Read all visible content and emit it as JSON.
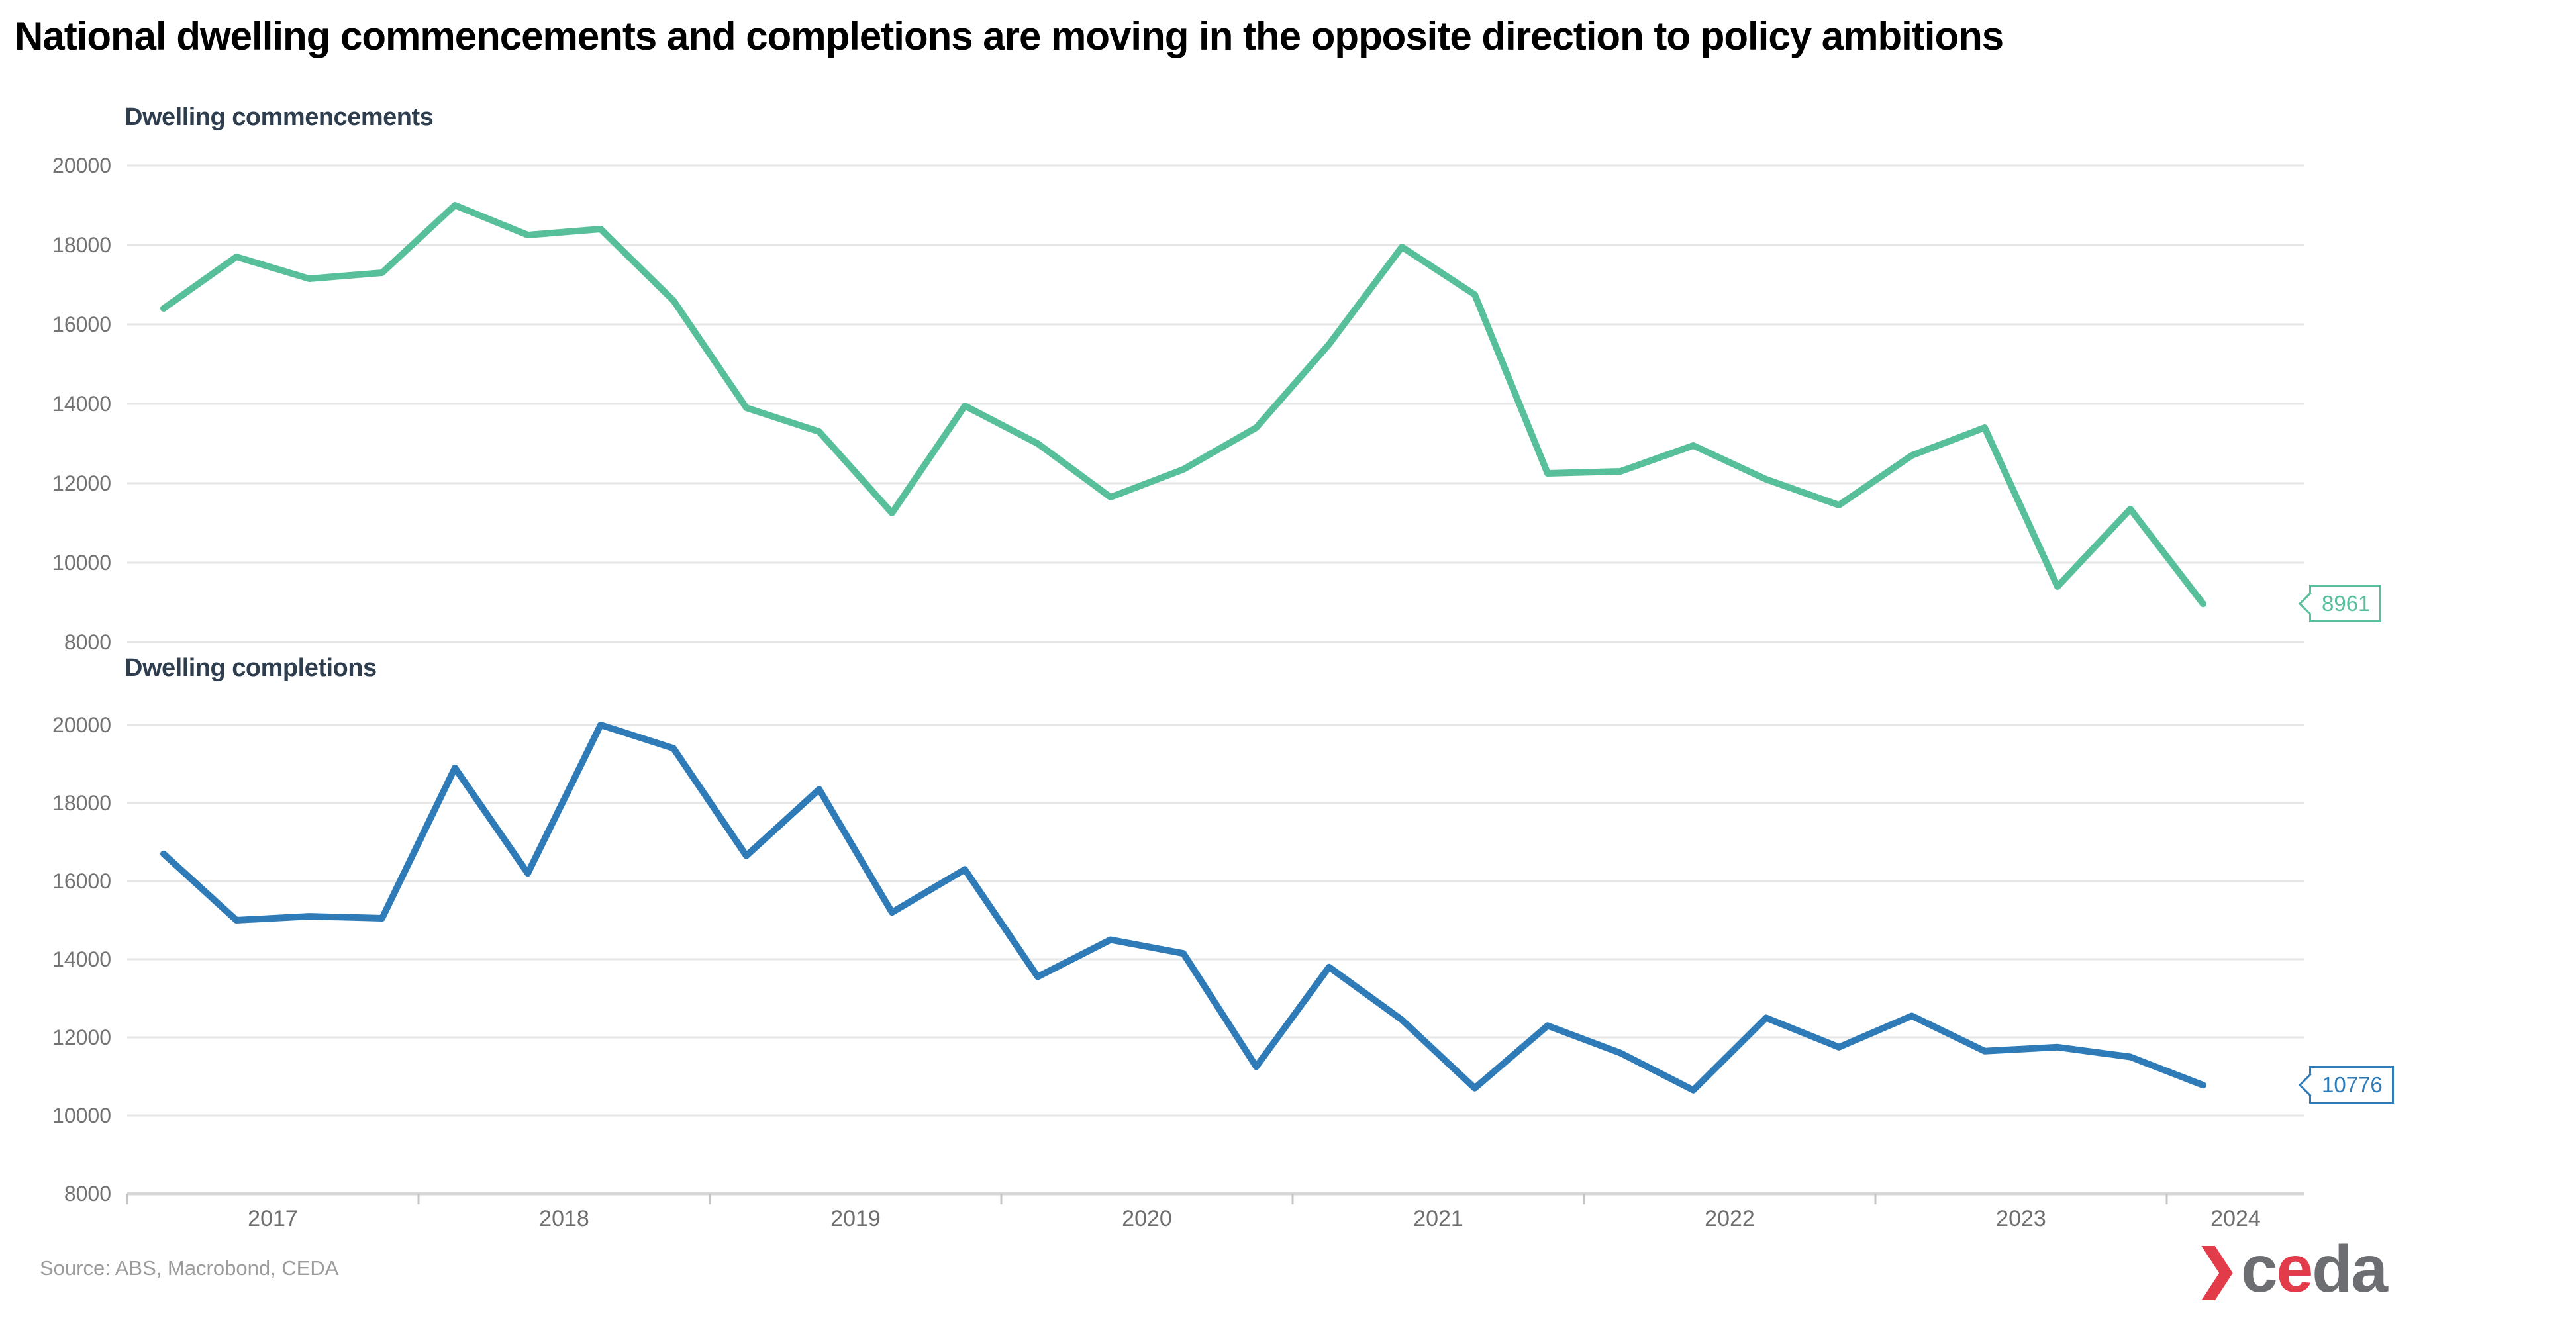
{
  "title": "National dwelling commencements and completions are moving in the opposite direction to policy ambitions",
  "source": "Source: ABS, Macrobond, CEDA",
  "logo": {
    "chevron_icon": "right-chevron",
    "red": "#e23b4a",
    "gray": "#6d6e71",
    "letters": [
      {
        "ch": "c",
        "color": "#6d6e71"
      },
      {
        "ch": "e",
        "color": "#e23b4a"
      },
      {
        "ch": "d",
        "color": "#6d6e71"
      },
      {
        "ch": "a",
        "color": "#6d6e71"
      }
    ]
  },
  "chart_data": [
    {
      "type": "line",
      "title": "Dwelling commencements",
      "line_color": "#57bf9a",
      "grid": true,
      "legend": "none",
      "ylim": [
        8000,
        20000
      ],
      "yticks": [
        20000,
        18000,
        16000,
        14000,
        12000,
        10000,
        8000
      ],
      "xticklabels": [
        "2017",
        "2018",
        "2019",
        "2020",
        "2021",
        "2022",
        "2023",
        "2024"
      ],
      "show_x_axis": false,
      "end_label": "8961",
      "x": [
        "2017 Q1",
        "2017 Q2",
        "2017 Q3",
        "2017 Q4",
        "2018 Q1",
        "2018 Q2",
        "2018 Q3",
        "2018 Q4",
        "2019 Q1",
        "2019 Q2",
        "2019 Q3",
        "2019 Q4",
        "2020 Q1",
        "2020 Q2",
        "2020 Q3",
        "2020 Q4",
        "2021 Q1",
        "2021 Q2",
        "2021 Q3",
        "2021 Q4",
        "2022 Q1",
        "2022 Q2",
        "2022 Q3",
        "2022 Q4",
        "2023 Q1",
        "2023 Q2",
        "2023 Q3",
        "2023 Q4",
        "2024 Q1"
      ],
      "values": [
        16400,
        17700,
        17150,
        17300,
        19000,
        18250,
        18400,
        16600,
        13900,
        13300,
        11250,
        13950,
        13000,
        11650,
        12350,
        13400,
        15500,
        17950,
        16750,
        12250,
        12300,
        12950,
        12100,
        11450,
        12700,
        13400,
        9400,
        11350,
        8961
      ]
    },
    {
      "type": "line",
      "title": "Dwelling completions",
      "line_color": "#2e7bb8",
      "grid": true,
      "legend": "none",
      "ylim": [
        8000,
        20000
      ],
      "yticks": [
        20000,
        18000,
        16000,
        14000,
        12000,
        10000,
        8000
      ],
      "xticklabels": [
        "2017",
        "2018",
        "2019",
        "2020",
        "2021",
        "2022",
        "2023",
        "2024"
      ],
      "show_x_axis": true,
      "end_label": "10776",
      "x": [
        "2017 Q1",
        "2017 Q2",
        "2017 Q3",
        "2017 Q4",
        "2018 Q1",
        "2018 Q2",
        "2018 Q3",
        "2018 Q4",
        "2019 Q1",
        "2019 Q2",
        "2019 Q3",
        "2019 Q4",
        "2020 Q1",
        "2020 Q2",
        "2020 Q3",
        "2020 Q4",
        "2021 Q1",
        "2021 Q2",
        "2021 Q3",
        "2021 Q4",
        "2022 Q1",
        "2022 Q2",
        "2022 Q3",
        "2022 Q4",
        "2023 Q1",
        "2023 Q2",
        "2023 Q3",
        "2023 Q4",
        "2024 Q1"
      ],
      "values": [
        16700,
        15000,
        15100,
        15050,
        18900,
        16200,
        20000,
        19400,
        16650,
        18350,
        15200,
        16300,
        13550,
        14500,
        14150,
        11250,
        13800,
        12450,
        10700,
        12300,
        11600,
        10650,
        12500,
        11750,
        12550,
        11650,
        11750,
        11500,
        10776
      ]
    }
  ]
}
